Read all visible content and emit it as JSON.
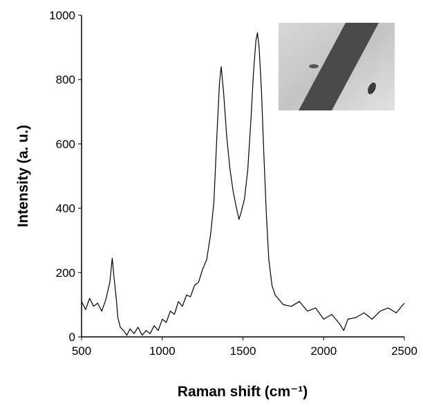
{
  "chart_data": {
    "type": "line",
    "xlabel": "Raman shift (cm⁻¹)",
    "ylabel": "Intensity (a. u.)",
    "color": "#000000",
    "xlim": [
      500,
      2500
    ],
    "xticks": [
      500,
      1000,
      1500,
      2000,
      2500
    ],
    "ylim": [
      0,
      1000
    ],
    "yticks": [
      0,
      200,
      400,
      600,
      800,
      1000
    ],
    "grid": false,
    "x": [
      500,
      525,
      550,
      575,
      600,
      625,
      650,
      675,
      690,
      700,
      715,
      725,
      740,
      760,
      780,
      800,
      825,
      850,
      875,
      900,
      925,
      950,
      975,
      1000,
      1025,
      1050,
      1075,
      1100,
      1125,
      1150,
      1175,
      1200,
      1225,
      1250,
      1275,
      1300,
      1320,
      1340,
      1355,
      1365,
      1380,
      1400,
      1420,
      1440,
      1460,
      1475,
      1490,
      1510,
      1530,
      1550,
      1565,
      1580,
      1590,
      1600,
      1615,
      1630,
      1645,
      1660,
      1680,
      1700,
      1725,
      1750,
      1800,
      1850,
      1900,
      1950,
      2000,
      2050,
      2100,
      2125,
      2150,
      2200,
      2250,
      2300,
      2350,
      2400,
      2450,
      2500
    ],
    "values": [
      110,
      85,
      120,
      95,
      105,
      80,
      115,
      170,
      245,
      190,
      120,
      60,
      30,
      20,
      5,
      25,
      10,
      30,
      5,
      20,
      10,
      35,
      20,
      55,
      45,
      80,
      70,
      110,
      95,
      130,
      125,
      160,
      170,
      210,
      240,
      320,
      420,
      640,
      790,
      840,
      760,
      620,
      520,
      450,
      400,
      365,
      390,
      430,
      520,
      680,
      820,
      920,
      945,
      900,
      760,
      560,
      380,
      240,
      160,
      130,
      115,
      100,
      95,
      110,
      80,
      90,
      55,
      70,
      40,
      20,
      55,
      60,
      75,
      55,
      80,
      90,
      75,
      105
    ]
  }
}
